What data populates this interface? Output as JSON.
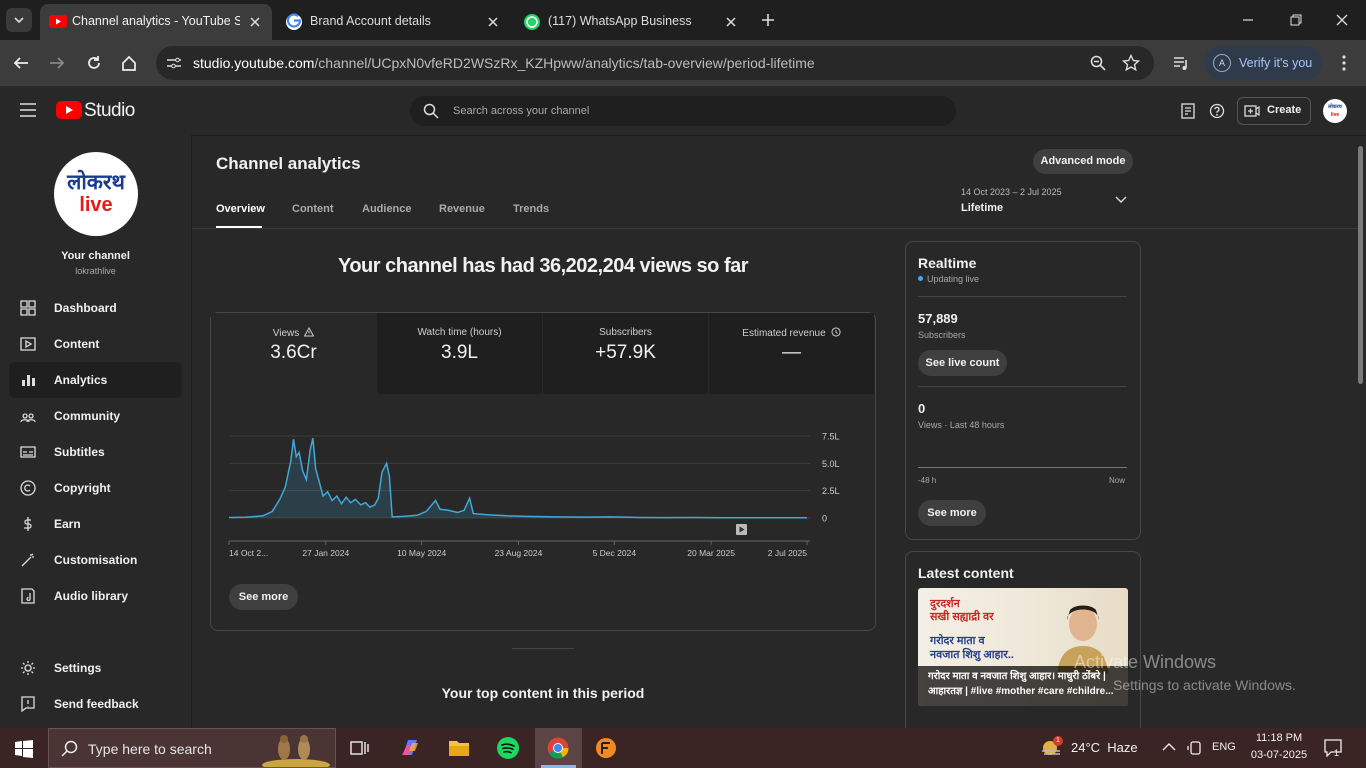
{
  "browser": {
    "tabs": [
      "Channel analytics - YouTube Stu",
      "Brand Account details",
      "(117) WhatsApp Business"
    ],
    "url_host": "studio.youtube.com",
    "url_path": "/channel/UCpxN0vfeRD2WSzRx_KZHpww/analytics/tab-overview/period-lifetime",
    "profile_button": "Verify it's you",
    "profile_initial": "A"
  },
  "header": {
    "logo": "Studio",
    "search_placeholder": "Search across your channel",
    "create": "Create"
  },
  "sidebar": {
    "avatar_line1": "लोकरथ",
    "avatar_line2": "live",
    "channel_label": "Your channel",
    "handle": "lokrathlive",
    "nav": [
      "Dashboard",
      "Content",
      "Analytics",
      "Community",
      "Subtitles",
      "Copyright",
      "Earn",
      "Customisation",
      "Audio library"
    ],
    "footer_nav": [
      "Settings",
      "Send feedback"
    ]
  },
  "main": {
    "title": "Channel analytics",
    "advanced_mode": "Advanced mode",
    "tabs": [
      "Overview",
      "Content",
      "Audience",
      "Revenue",
      "Trends"
    ],
    "period_range": "14 Oct 2023 – 2 Jul 2025",
    "period_label": "Lifetime",
    "headline": "Your channel has had 36,202,204 views so far",
    "metrics": [
      {
        "label": "Views",
        "value": "3.6Cr"
      },
      {
        "label": "Watch time (hours)",
        "value": "3.9L"
      },
      {
        "label": "Subscribers",
        "value": "+57.9K"
      },
      {
        "label": "Estimated revenue",
        "value": "—"
      }
    ],
    "see_more": "See more",
    "top_content_title": "Your top content in this period"
  },
  "chart": {
    "type": "line",
    "color": "#41a8d8",
    "x": [
      "2023-10-14",
      "2023-11-01",
      "2023-11-20",
      "2023-11-30",
      "2023-12-08",
      "2023-12-14",
      "2023-12-20",
      "2023-12-23",
      "2023-12-26",
      "2023-12-29",
      "2024-01-02",
      "2024-01-06",
      "2024-01-10",
      "2024-01-13",
      "2024-01-16",
      "2024-01-20",
      "2024-01-24",
      "2024-01-29",
      "2024-02-03",
      "2024-02-08",
      "2024-02-13",
      "2024-02-18",
      "2024-02-23",
      "2024-02-28",
      "2024-03-05",
      "2024-03-10",
      "2024-03-15",
      "2024-03-20",
      "2024-03-24",
      "2024-03-28",
      "2024-04-02",
      "2024-04-05",
      "2024-04-08",
      "2024-04-20",
      "2024-05-05",
      "2024-05-15",
      "2024-05-25",
      "2024-05-30",
      "2024-06-08",
      "2024-06-18",
      "2024-06-25",
      "2024-07-01",
      "2024-07-05",
      "2024-07-20",
      "2024-08-10",
      "2024-09-01",
      "2024-10-01",
      "2024-11-01",
      "2024-12-01",
      "2025-01-01",
      "2025-02-01",
      "2025-03-01",
      "2025-04-01",
      "2025-05-01",
      "2025-06-01",
      "2025-07-02"
    ],
    "values": [
      5000,
      6000,
      20000,
      60000,
      170000,
      280000,
      520000,
      720000,
      560000,
      600000,
      430000,
      350000,
      620000,
      730000,
      450000,
      330000,
      200000,
      240000,
      160000,
      200000,
      130000,
      190000,
      140000,
      170000,
      120000,
      140000,
      100000,
      120000,
      180000,
      420000,
      500000,
      380000,
      10000,
      15000,
      25000,
      60000,
      160000,
      80000,
      70000,
      50000,
      70000,
      180000,
      40000,
      30000,
      20000,
      15000,
      10000,
      8000,
      10000,
      5000,
      4000,
      5000,
      3000,
      3000,
      2000,
      2000
    ],
    "xlim": [
      "2023-10-14",
      "2025-07-02"
    ],
    "xticks": [
      {
        "value": "2023-10-14",
        "label": "14 Oct 2..."
      },
      {
        "value": "2024-01-27",
        "label": "27 Jan 2024"
      },
      {
        "value": "2024-05-10",
        "label": "10 May 2024"
      },
      {
        "value": "2024-08-23",
        "label": "23 Aug 2024"
      },
      {
        "value": "2024-12-05",
        "label": "5 Dec 2024"
      },
      {
        "value": "2025-03-20",
        "label": "20 Mar 2025"
      },
      {
        "value": "2025-07-02",
        "label": "2 Jul 2025"
      }
    ],
    "ylim": [
      0,
      750000
    ],
    "yticks": [
      0,
      {
        "value": 250000,
        "label": "2.5L"
      },
      {
        "value": 500000,
        "label": "5.0L"
      },
      {
        "value": 750000,
        "label": "7.5L"
      }
    ],
    "grid": true
  },
  "realtime": {
    "title": "Realtime",
    "status": "Updating live",
    "subscribers": "57,889",
    "subscribers_label": "Subscribers",
    "live_count_button": "See live count",
    "views": "0",
    "views_label": "Views · Last 48 hours",
    "axis_start": "-48 h",
    "axis_end": "Now",
    "see_more": "See more"
  },
  "latest": {
    "title": "Latest content",
    "thumb_line1": "दुरदर्शन",
    "thumb_line2": "सखी सह्याद्री वर",
    "thumb_line3": "गरोदर माता व",
    "thumb_line4": "नवजात शिशु आहार..",
    "caption": "गरोदर माता व नवजात शिशु आहार। माधुरी ठोंबरे | आहारतज्ञ | #live #mother #care #childre..."
  },
  "watermark": {
    "title": "Activate Windows",
    "subtitle": "Settings to activate Windows."
  },
  "taskbar": {
    "search": "Type here to search",
    "weather": "24°C  Haze",
    "weather_badge": "1",
    "language": "ENG",
    "time": "11:18 PM",
    "date": "03-07-2025",
    "notifications": "1"
  }
}
